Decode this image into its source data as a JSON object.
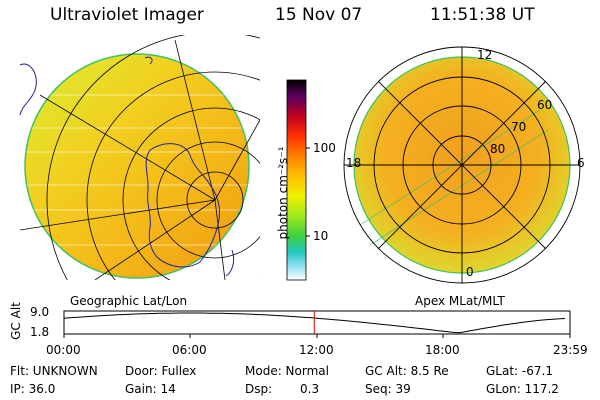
{
  "header": {
    "instrument": "Ultraviolet Imager",
    "date": "15 Nov 07",
    "time": "11:51:38 UT"
  },
  "left_panel": {
    "label": "Geographic Lat/Lon"
  },
  "right_panel": {
    "label": "Apex  MLat/MLT",
    "mlt_labels": [
      "12",
      "18",
      "6",
      "0"
    ],
    "mlat_labels": [
      "60",
      "70",
      "80"
    ]
  },
  "colorbar": {
    "unit": "photon cm⁻²s⁻¹",
    "ticks": [
      "100",
      "10"
    ],
    "colors": [
      "#000000",
      "#6a0060",
      "#c00020",
      "#ff2000",
      "#ff7800",
      "#ffb000",
      "#ffe000",
      "#c8f000",
      "#60e020",
      "#20d0c0",
      "#80e0f0",
      "#ffffff"
    ]
  },
  "alt_plot": {
    "axis_label": "GC Alt",
    "y_ticks": [
      "9.0",
      "1.8"
    ],
    "x_ticks": [
      "00:00",
      "06:00",
      "12:00",
      "18:00",
      "23:59"
    ],
    "marker_time_hours": 11.86,
    "marker_color": "#e00000"
  },
  "info": {
    "flt": "Flt: UNKNOWN",
    "ip": "IP: 36.0",
    "door": "Door: Fullex",
    "gain": "Gain: 14",
    "mode": "Mode: Normal",
    "dsp_label": "Dsp:",
    "dsp_value": "0.3",
    "gc_alt": "GC Alt: 8.5 Re",
    "seq": "Seq: 39",
    "glat": "GLat: -67.1",
    "glon": "GLon: 117.2"
  }
}
